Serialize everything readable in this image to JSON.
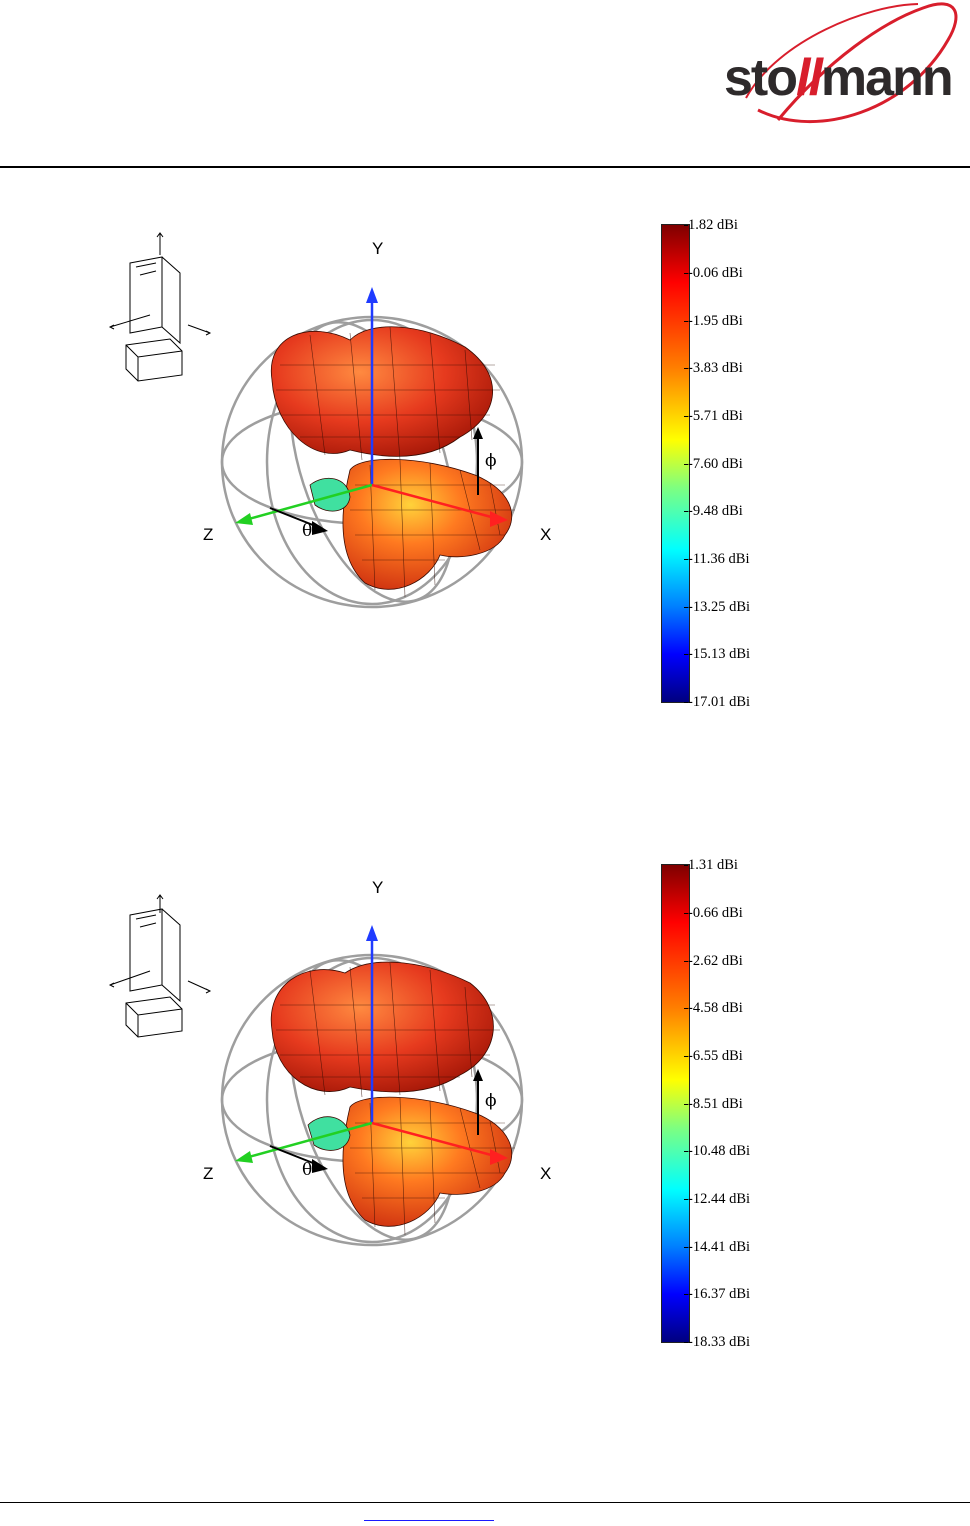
{
  "header": {
    "logo_text_pre": "sto",
    "logo_text_slash": "ll",
    "logo_text_post": "mann"
  },
  "figures": [
    {
      "axes": {
        "y": "Y",
        "z": "Z",
        "x": "X",
        "theta": "θ",
        "phi": "ϕ"
      },
      "colorbar_ticks": [
        "1.82 dBi",
        "-0.06 dBi",
        "-1.95 dBi",
        "-3.83 dBi",
        "-5.71 dBi",
        "-7.60 dBi",
        "-9.48 dBi",
        "-11.36 dBi",
        "-13.25 dBi",
        "-15.13 dBi",
        "-17.01 dBi"
      ]
    },
    {
      "axes": {
        "y": "Y",
        "z": "Z",
        "x": "X",
        "theta": "θ",
        "phi": "ϕ"
      },
      "colorbar_ticks": [
        "1.31 dBi",
        "-0.66 dBi",
        "-2.62 dBi",
        "-4.58 dBi",
        "-6.55 dBi",
        "-8.51 dBi",
        "-10.48 dBi",
        "-12.44 dBi",
        "-14.41 dBi",
        "-16.37 dBi",
        "-18.33 dBi"
      ]
    }
  ],
  "colors": {
    "brand_red": "#d81e2c",
    "brand_dark": "#2e2a2b",
    "axis_y": "#1f3bff",
    "axis_z": "#22d022",
    "axis_x": "#ff2020",
    "lobe": "#e0321e"
  }
}
